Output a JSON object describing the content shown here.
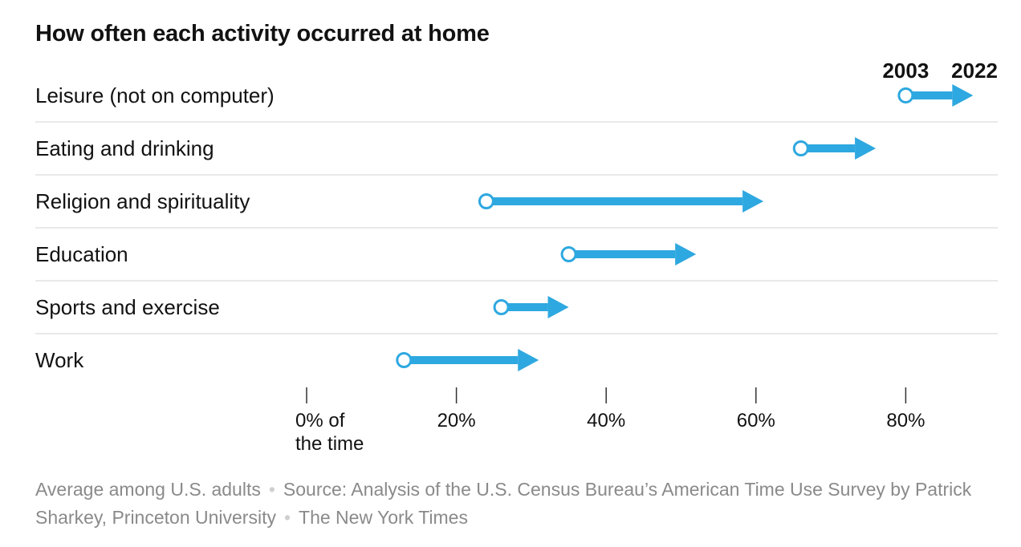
{
  "chart_data": {
    "type": "dumbbell-arrow",
    "title": "How often each activity occurred at home",
    "legend": {
      "start_label": "2003",
      "end_label": "2022",
      "placement": "top-right"
    },
    "xlim": [
      0,
      100
    ],
    "x_ticks": [
      0,
      20,
      40,
      60,
      80
    ],
    "x_tick_labels": [
      "0% of\nthe time",
      "20%",
      "40%",
      "60%",
      "80%"
    ],
    "categories": [
      "Leisure (not on computer)",
      "Eating and drinking",
      "Religion and spirituality",
      "Education",
      "Sports and exercise",
      "Work"
    ],
    "series": [
      {
        "name": "2003",
        "values": [
          80,
          66,
          24,
          35,
          26,
          13
        ]
      },
      {
        "name": "2022",
        "values": [
          89,
          76,
          61,
          52,
          35,
          31
        ]
      }
    ],
    "colors": {
      "accent": "#2EA8E0",
      "gridline": "#E2E2E2",
      "tick": "#333333",
      "text": "#121212"
    }
  },
  "footer": {
    "note": "Average among U.S. adults",
    "source": "Source: Analysis of the U.S. Census Bureau’s American Time Use Survey by Patrick Sharkey, Princeton University",
    "credit": "The New York Times"
  }
}
